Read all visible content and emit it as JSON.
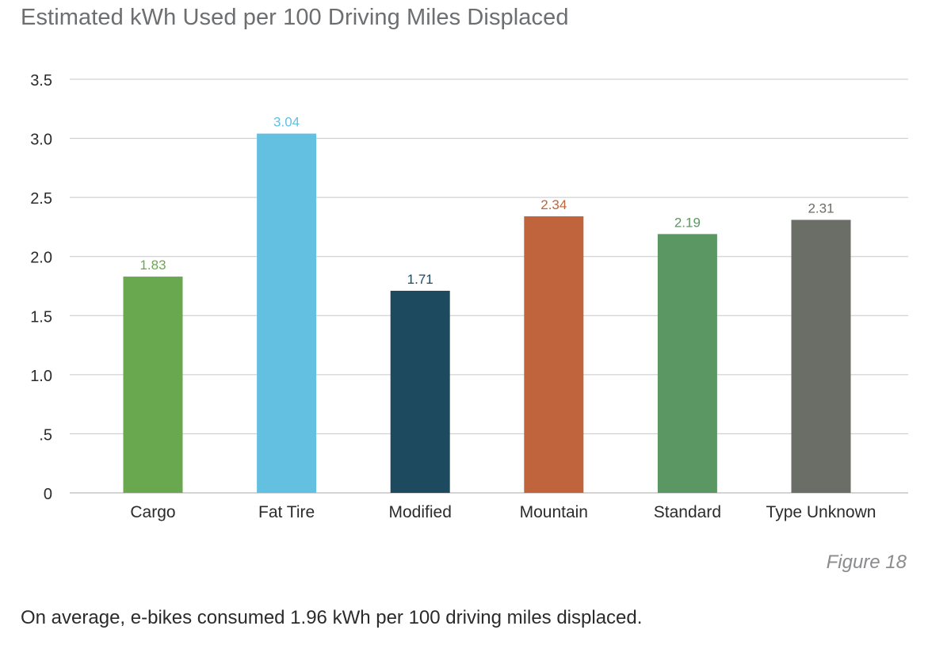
{
  "figure_label": "Figure 18",
  "summary": "On average, e-bikes consumed 1.96 kWh per 100 driving miles displaced.",
  "chart_data": {
    "type": "bar",
    "title": "Estimated kWh Used per 100 Driving Miles Displaced",
    "xlabel": "",
    "ylabel": "",
    "ylim": [
      0,
      3.5
    ],
    "yticks": [
      {
        "value": 0,
        "label": "0"
      },
      {
        "value": 0.5,
        "label": ".5"
      },
      {
        "value": 1.0,
        "label": "1.0"
      },
      {
        "value": 1.5,
        "label": "1.5"
      },
      {
        "value": 2.0,
        "label": "2.0"
      },
      {
        "value": 2.5,
        "label": "2.5"
      },
      {
        "value": 3.0,
        "label": "3.0"
      },
      {
        "value": 3.5,
        "label": "3.5"
      }
    ],
    "grid": true,
    "legend": "none",
    "categories": [
      "Cargo",
      "Fat Tire",
      "Modified",
      "Mountain",
      "Standard",
      "Type Unknown"
    ],
    "values": [
      1.83,
      3.04,
      1.71,
      2.34,
      2.19,
      2.31
    ],
    "value_labels": [
      "1.83",
      "3.04",
      "1.71",
      "2.34",
      "2.19",
      "2.31"
    ],
    "colors": [
      "#6aa84f",
      "#63c0e1",
      "#1e4a60",
      "#bf643c",
      "#5a9763",
      "#6b6d67"
    ],
    "label_colors": [
      "#6aa84f",
      "#63c0e1",
      "#1e4a60",
      "#bf643c",
      "#5a9763",
      "#6b6d67"
    ],
    "gridline_color": "#c8c8c8",
    "tick_label_color": "#2b2b2b"
  }
}
